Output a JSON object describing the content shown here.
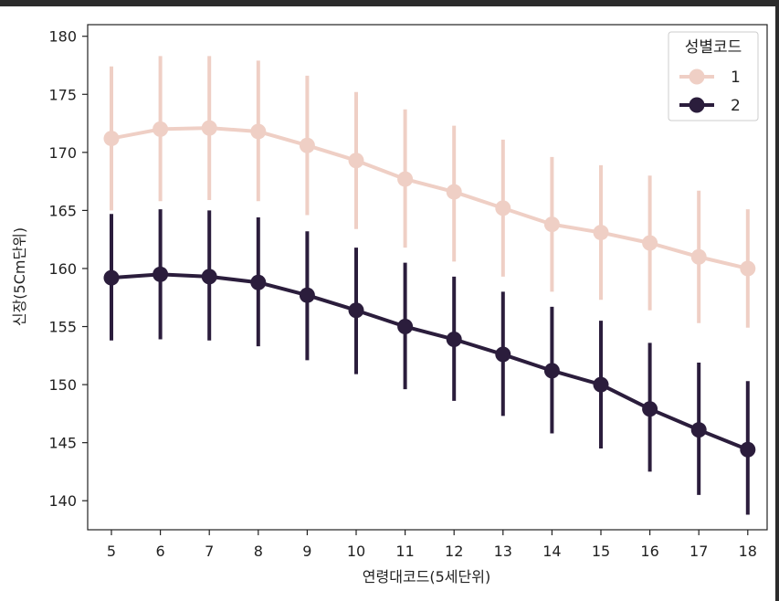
{
  "chart_data": {
    "type": "line",
    "xlabel": "연령대코드(5세단위)",
    "ylabel": "신장(5Cm단위)",
    "categories": [
      "5",
      "6",
      "7",
      "8",
      "9",
      "10",
      "11",
      "12",
      "13",
      "14",
      "15",
      "16",
      "17",
      "18"
    ],
    "ylim": [
      137.5,
      181.0
    ],
    "yticks": [
      140,
      145,
      150,
      155,
      160,
      165,
      170,
      175,
      180
    ],
    "grid": false,
    "legend": {
      "title": "성별코드",
      "position": "top-right"
    },
    "series": [
      {
        "name": "1",
        "color": "#efcfc5",
        "values": [
          171.2,
          172.0,
          172.1,
          171.8,
          170.6,
          169.3,
          167.7,
          166.6,
          165.2,
          163.8,
          163.1,
          162.2,
          161.0,
          160.0
        ],
        "err_low": [
          165.0,
          165.8,
          165.9,
          165.8,
          164.6,
          163.4,
          161.8,
          160.6,
          159.3,
          158.0,
          157.3,
          156.4,
          155.3,
          154.9
        ],
        "err_high": [
          177.4,
          178.3,
          178.3,
          177.9,
          176.6,
          175.2,
          173.7,
          172.3,
          171.1,
          169.6,
          168.9,
          168.0,
          166.7,
          165.1
        ]
      },
      {
        "name": "2",
        "color": "#2b1d3c",
        "values": [
          159.2,
          159.5,
          159.3,
          158.8,
          157.7,
          156.4,
          155.0,
          153.9,
          152.6,
          151.2,
          150.0,
          147.9,
          146.1,
          144.4
        ],
        "err_low": [
          153.8,
          153.9,
          153.8,
          153.3,
          152.1,
          150.9,
          149.6,
          148.6,
          147.3,
          145.8,
          144.5,
          142.5,
          140.5,
          138.8
        ],
        "err_high": [
          164.7,
          165.1,
          165.0,
          164.4,
          163.2,
          161.8,
          160.5,
          159.3,
          158.0,
          156.7,
          155.5,
          153.6,
          151.9,
          150.3
        ]
      }
    ]
  }
}
